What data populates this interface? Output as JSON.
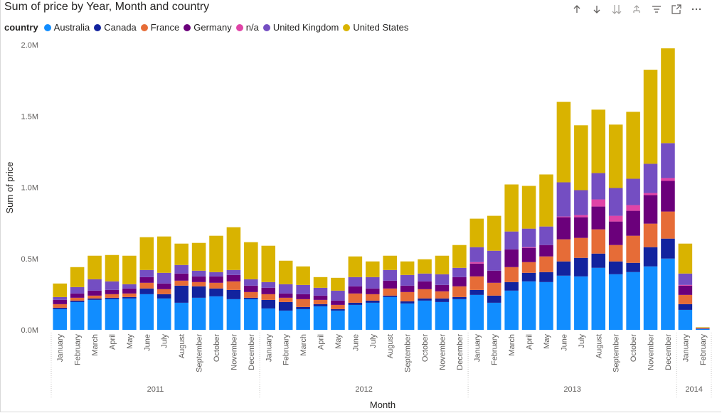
{
  "window": {
    "title": "Sum of price by Year, Month and country",
    "toolbar_icons": [
      "sort-ascending-icon",
      "sort-descending-icon",
      "expand-all-down-icon",
      "drill-up-icon",
      "filter-icon",
      "focus-mode-icon",
      "more-options-icon"
    ]
  },
  "legend": {
    "title": "country",
    "items": [
      {
        "label": "Australia",
        "color": "#118DFF"
      },
      {
        "label": "Canada",
        "color": "#12239E"
      },
      {
        "label": "France",
        "color": "#E66C37"
      },
      {
        "label": "Germany",
        "color": "#6B007B"
      },
      {
        "label": "n/a",
        "color": "#E044A7"
      },
      {
        "label": "United Kingdom",
        "color": "#744EC2"
      },
      {
        "label": "United States",
        "color": "#D9B300"
      }
    ]
  },
  "chart_data": {
    "type": "bar",
    "stacked": true,
    "title": "Sum of price by Year, Month and country",
    "xlabel": "Month",
    "ylabel": "Sum of price",
    "ylim": [
      0,
      2000000
    ],
    "y_ticks": [
      "0.0M",
      "0.5M",
      "1.0M",
      "1.5M",
      "2.0M"
    ],
    "legend_position": "top-left",
    "grid": false,
    "groups": [
      {
        "label": "2011",
        "start": 0,
        "count": 12
      },
      {
        "label": "2012",
        "start": 12,
        "count": 12
      },
      {
        "label": "2013",
        "start": 24,
        "count": 12
      },
      {
        "label": "2014",
        "start": 36,
        "count": 2
      }
    ],
    "categories": [
      "January",
      "February",
      "March",
      "April",
      "May",
      "June",
      "July",
      "August",
      "September",
      "October",
      "November",
      "December",
      "January",
      "February",
      "March",
      "April",
      "May",
      "June",
      "July",
      "August",
      "September",
      "October",
      "November",
      "December",
      "January",
      "February",
      "March",
      "April",
      "May",
      "June",
      "July",
      "August",
      "September",
      "October",
      "November",
      "December",
      "January",
      "February"
    ],
    "series": [
      {
        "name": "Australia",
        "color": "#118DFF",
        "values": [
          145000,
          195000,
          210000,
          215000,
          220000,
          250000,
          220000,
          190000,
          225000,
          235000,
          215000,
          215000,
          150000,
          135000,
          145000,
          165000,
          135000,
          175000,
          190000,
          230000,
          185000,
          205000,
          195000,
          215000,
          245000,
          190000,
          275000,
          340000,
          335000,
          380000,
          375000,
          435000,
          390000,
          405000,
          445000,
          500000,
          140000,
          5000
        ]
      },
      {
        "name": "Canada",
        "color": "#12239E",
        "values": [
          10000,
          10000,
          10000,
          10000,
          10000,
          40000,
          30000,
          120000,
          80000,
          55000,
          65000,
          10000,
          60000,
          60000,
          15000,
          15000,
          10000,
          15000,
          15000,
          10000,
          15000,
          15000,
          25000,
          15000,
          35000,
          50000,
          60000,
          60000,
          70000,
          100000,
          130000,
          100000,
          90000,
          65000,
          135000,
          140000,
          40000,
          2000
        ]
      },
      {
        "name": "France",
        "color": "#E66C37",
        "values": [
          25000,
          20000,
          20000,
          25000,
          25000,
          40000,
          35000,
          35000,
          30000,
          40000,
          60000,
          40000,
          40000,
          30000,
          55000,
          30000,
          30000,
          65000,
          45000,
          50000,
          65000,
          65000,
          50000,
          75000,
          95000,
          90000,
          105000,
          75000,
          110000,
          155000,
          140000,
          170000,
          115000,
          190000,
          165000,
          190000,
          65000,
          2000
        ]
      },
      {
        "name": "Germany",
        "color": "#6B007B",
        "values": [
          30000,
          30000,
          35000,
          30000,
          35000,
          40000,
          40000,
          50000,
          40000,
          45000,
          45000,
          45000,
          45000,
          30000,
          35000,
          30000,
          30000,
          50000,
          40000,
          55000,
          45000,
          55000,
          45000,
          65000,
          90000,
          85000,
          125000,
          100000,
          80000,
          155000,
          145000,
          160000,
          165000,
          175000,
          200000,
          215000,
          65000,
          2000
        ]
      },
      {
        "name": "n/a",
        "color": "#E044A7",
        "values": [
          0,
          0,
          0,
          0,
          0,
          0,
          0,
          0,
          0,
          0,
          0,
          0,
          0,
          0,
          0,
          0,
          0,
          0,
          0,
          0,
          0,
          0,
          0,
          0,
          10000,
          0,
          0,
          5000,
          0,
          5000,
          15000,
          50000,
          40000,
          40000,
          15000,
          20000,
          5000,
          0
        ]
      },
      {
        "name": "United Kingdom",
        "color": "#744EC2",
        "values": [
          20000,
          45000,
          80000,
          60000,
          30000,
          50000,
          75000,
          60000,
          40000,
          30000,
          35000,
          45000,
          40000,
          65000,
          65000,
          55000,
          70000,
          65000,
          80000,
          75000,
          75000,
          55000,
          75000,
          65000,
          105000,
          140000,
          125000,
          130000,
          130000,
          240000,
          175000,
          185000,
          195000,
          185000,
          205000,
          245000,
          80000,
          2000
        ]
      },
      {
        "name": "United States",
        "color": "#D9B300",
        "values": [
          95000,
          140000,
          165000,
          185000,
          200000,
          230000,
          255000,
          150000,
          195000,
          255000,
          300000,
          260000,
          255000,
          165000,
          130000,
          75000,
          90000,
          145000,
          110000,
          100000,
          95000,
          100000,
          130000,
          160000,
          200000,
          245000,
          330000,
          300000,
          365000,
          565000,
          455000,
          445000,
          445000,
          470000,
          660000,
          665000,
          210000,
          5000
        ]
      }
    ]
  }
}
